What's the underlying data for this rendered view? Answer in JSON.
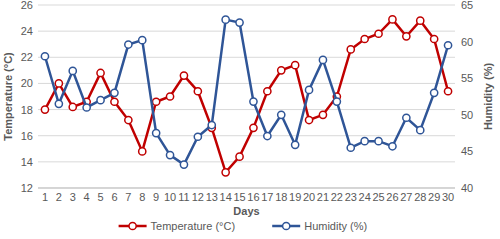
{
  "chart_data": {
    "type": "line",
    "x_label": "Days",
    "y_label": "Temperature (°C)",
    "y2_label": "Humidity (%)",
    "categories": [
      "1",
      "2",
      "3",
      "4",
      "5",
      "6",
      "7",
      "8",
      "9",
      "10",
      "11",
      "12",
      "13",
      "14",
      "15",
      "16",
      "17",
      "18",
      "19",
      "20",
      "21",
      "22",
      "23",
      "24",
      "25",
      "26",
      "27",
      "28",
      "29",
      "30"
    ],
    "series": [
      {
        "name": "Temperature (°C)",
        "color": "#c00000",
        "marker": "circle",
        "values": [
          18.0,
          20.0,
          18.2,
          18.6,
          20.8,
          18.6,
          17.2,
          14.8,
          18.6,
          19.0,
          20.6,
          19.4,
          16.6,
          13.2,
          14.4,
          16.6,
          19.4,
          21.0,
          21.4,
          17.2,
          17.6,
          19.0,
          22.6,
          23.4,
          23.8,
          24.9,
          23.6,
          24.8,
          23.4,
          19.4
        ]
      },
      {
        "name": "Humidity (%)",
        "color": "#2f5597",
        "marker": "circle",
        "axis": "y2",
        "values": [
          58.0,
          51.5,
          56.0,
          51.0,
          52.0,
          53.0,
          59.6,
          60.2,
          47.5,
          44.5,
          43.2,
          47.0,
          48.6,
          63.0,
          62.6,
          51.8,
          47.1,
          50.0,
          45.9,
          53.4,
          57.5,
          51.8,
          45.5,
          46.4,
          46.4,
          45.7,
          49.6,
          47.9,
          53.0,
          59.5
        ]
      }
    ],
    "ylim": [
      12,
      26
    ],
    "yticks": [
      12,
      14,
      16,
      18,
      20,
      22,
      24,
      26
    ],
    "y2lim": [
      40,
      65
    ],
    "y2ticks": [
      40,
      45,
      50,
      55,
      60,
      65
    ],
    "grid": true,
    "legend": "bottom"
  }
}
